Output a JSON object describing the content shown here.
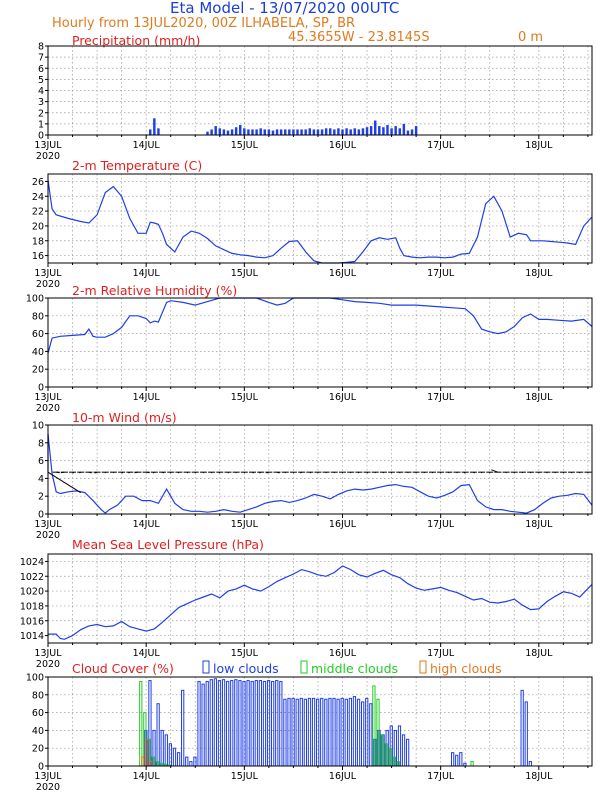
{
  "header": {
    "title": "Eta Model - 13/07/2020 00UTC",
    "subtitle": "Hourly from 13JUL2020, 00Z  ILHABELA, SP, BR",
    "coords": "45.3655W - 23.8145S",
    "elevation": "0   m"
  },
  "x_axis": {
    "ticks": [
      {
        "label": "13JUL",
        "hour": 0
      },
      {
        "label": "14JUL",
        "hour": 24
      },
      {
        "label": "15JUL",
        "hour": 48
      },
      {
        "label": "16JUL",
        "hour": 72
      },
      {
        "label": "17JUL",
        "hour": 96
      },
      {
        "label": "18JUL",
        "hour": 120
      }
    ],
    "year": "2020",
    "range_hours": [
      0,
      133
    ]
  },
  "colors": {
    "series": "#1f3fe8",
    "title_red": "#e02020",
    "header_blue": "#1a3fd8",
    "header_orange": "#e07a1f",
    "low": "#1f3fe8",
    "middle": "#22cc22",
    "high": "#e07a1f",
    "barb": "#000000"
  },
  "legend": {
    "low": "low clouds",
    "middle": "middle clouds",
    "high": "high clouds"
  },
  "chart_data": [
    {
      "id": "precip",
      "type": "bar",
      "title": "Precipitation (mm/h)",
      "ylim": [
        0,
        8
      ],
      "yticks": [
        0,
        1,
        2,
        3,
        4,
        5,
        6,
        7,
        8
      ],
      "x_hours": [
        25,
        26,
        27,
        39,
        40,
        41,
        42,
        43,
        44,
        45,
        46,
        47,
        48,
        49,
        50,
        51,
        52,
        53,
        54,
        55,
        56,
        57,
        58,
        59,
        60,
        61,
        62,
        63,
        64,
        65,
        66,
        67,
        68,
        69,
        70,
        71,
        72,
        73,
        74,
        75,
        76,
        77,
        78,
        79,
        80,
        81,
        82,
        83,
        84,
        85,
        86,
        87,
        88,
        89,
        90
      ],
      "values": [
        0.5,
        1.5,
        0.6,
        0.3,
        0.5,
        0.8,
        0.6,
        0.5,
        0.4,
        0.5,
        0.7,
        0.9,
        0.6,
        0.5,
        0.5,
        0.5,
        0.6,
        0.5,
        0.5,
        0.4,
        0.5,
        0.5,
        0.5,
        0.5,
        0.5,
        0.5,
        0.5,
        0.5,
        0.6,
        0.5,
        0.5,
        0.5,
        0.6,
        0.6,
        0.5,
        0.6,
        0.5,
        0.6,
        0.5,
        0.6,
        0.5,
        0.6,
        0.7,
        0.8,
        1.3,
        0.8,
        0.7,
        0.9,
        0.6,
        0.8,
        0.6,
        1.0,
        0.4,
        0.5,
        0.8
      ]
    },
    {
      "id": "temp",
      "type": "line",
      "title": "2-m Temperature (C)",
      "ylim": [
        15,
        27
      ],
      "yticks": [
        16,
        18,
        20,
        22,
        24,
        26
      ],
      "x": [
        0,
        1,
        2,
        5,
        8,
        10,
        12,
        14,
        16,
        18,
        20,
        22,
        24,
        25,
        26,
        27,
        28,
        29,
        31,
        33,
        35,
        37,
        39,
        41,
        43,
        45,
        47,
        49,
        51,
        53,
        55,
        57,
        59,
        61,
        63,
        65,
        67,
        69,
        71,
        73,
        75,
        77,
        79,
        81,
        83,
        85,
        86,
        87,
        89,
        91,
        93,
        95,
        97,
        99,
        101,
        103,
        105,
        107,
        109,
        111,
        113,
        115,
        117,
        118,
        119,
        121,
        123,
        125,
        127,
        129,
        131,
        133
      ],
      "y": [
        26.2,
        22.3,
        21.5,
        21.0,
        20.6,
        20.4,
        21.5,
        24.5,
        25.3,
        24.0,
        21.0,
        19.0,
        19.0,
        20.5,
        20.4,
        20.2,
        19.0,
        17.5,
        16.5,
        18.5,
        19.3,
        19.0,
        18.3,
        17.3,
        16.8,
        16.3,
        16.1,
        16.0,
        15.8,
        15.7,
        16.0,
        17.0,
        17.9,
        18.0,
        16.5,
        15.3,
        15.0,
        15.0,
        15.0,
        15.1,
        15.2,
        16.5,
        18.0,
        18.4,
        18.2,
        18.4,
        17.0,
        16.0,
        15.8,
        15.7,
        15.8,
        15.8,
        15.7,
        15.8,
        16.2,
        16.3,
        18.5,
        23.0,
        24.0,
        22.0,
        18.5,
        19.0,
        18.8,
        18.0,
        18.0,
        18.0,
        17.9,
        17.8,
        17.7,
        17.5,
        20.0,
        21.2
      ]
    },
    {
      "id": "rh",
      "type": "line",
      "title": "2-m Relative Humidity (%)",
      "ylim": [
        0,
        100
      ],
      "yticks": [
        0,
        20,
        40,
        60,
        80,
        100
      ],
      "x": [
        0,
        1,
        3,
        6,
        9,
        10,
        11,
        12,
        14,
        16,
        18,
        20,
        22,
        24,
        25,
        26,
        27,
        29,
        30,
        33,
        36,
        39,
        42,
        45,
        48,
        51,
        54,
        56,
        58,
        60,
        63,
        66,
        69,
        72,
        75,
        78,
        81,
        84,
        87,
        90,
        93,
        96,
        99,
        102,
        104,
        106,
        108,
        110,
        112,
        114,
        116,
        118,
        120,
        122,
        125,
        128,
        131,
        133
      ],
      "y": [
        38,
        55,
        57,
        58,
        59,
        65,
        57,
        56,
        56,
        60,
        67,
        80,
        80,
        77,
        72,
        74,
        73,
        95,
        97,
        95,
        92,
        96,
        100,
        100,
        100,
        100,
        95,
        92,
        94,
        100,
        100,
        100,
        100,
        98,
        96,
        95,
        94,
        92,
        92,
        92,
        91,
        90,
        89,
        88,
        80,
        65,
        62,
        60,
        62,
        68,
        78,
        82,
        76,
        76,
        75,
        74,
        76,
        68
      ]
    },
    {
      "id": "wind",
      "type": "line",
      "title": "10-m Wind (m/s)",
      "ylim": [
        0,
        10
      ],
      "yticks": [
        0,
        2,
        4,
        6,
        8,
        10
      ],
      "x": [
        0,
        1,
        2,
        3,
        5,
        7,
        9,
        11,
        13,
        14,
        15,
        17,
        19,
        21,
        23,
        25,
        27,
        29,
        30,
        31,
        33,
        35,
        37,
        39,
        41,
        43,
        45,
        47,
        49,
        51,
        53,
        55,
        57,
        59,
        61,
        63,
        65,
        67,
        69,
        71,
        73,
        75,
        77,
        79,
        81,
        83,
        85,
        87,
        89,
        91,
        93,
        95,
        97,
        99,
        101,
        103,
        105,
        107,
        109,
        111,
        113,
        115,
        117,
        119,
        121,
        123,
        125,
        127,
        129,
        131,
        133
      ],
      "y": [
        9.0,
        4.5,
        2.5,
        2.3,
        2.5,
        2.6,
        2.4,
        1.5,
        0.5,
        0.1,
        0.5,
        1.0,
        2.0,
        2.0,
        1.5,
        1.5,
        1.2,
        2.8,
        2.0,
        1.2,
        0.5,
        0.3,
        0.3,
        0.2,
        0.3,
        0.5,
        0.3,
        0.2,
        0.5,
        0.8,
        1.2,
        1.4,
        1.5,
        1.3,
        1.5,
        1.8,
        2.2,
        2.0,
        1.7,
        2.2,
        2.6,
        2.8,
        2.7,
        2.8,
        3.0,
        3.2,
        3.3,
        3.1,
        3.0,
        2.5,
        2.0,
        1.8,
        2.1,
        2.5,
        3.2,
        3.3,
        1.5,
        0.8,
        0.5,
        0.5,
        0.3,
        0.2,
        0.1,
        0.5,
        1.2,
        1.8,
        2.0,
        2.1,
        2.3,
        2.2,
        1.0
      ],
      "barbs": {
        "level": 4.7,
        "every_hours": 2,
        "dir_deg": [
          60,
          120,
          80,
          100,
          70,
          110,
          90,
          90,
          80,
          100,
          120,
          60,
          100,
          80,
          90,
          95,
          85,
          90,
          90,
          90,
          95,
          85,
          90,
          90,
          80,
          100,
          110,
          70,
          90,
          90,
          100,
          80,
          90,
          90,
          90,
          90,
          90,
          95,
          85,
          90,
          90,
          90,
          90,
          90,
          90,
          90,
          90,
          90,
          90,
          90,
          100,
          80,
          90,
          90,
          200,
          90,
          90,
          90,
          90,
          90,
          90,
          90,
          90,
          90,
          90,
          90,
          90
        ]
      }
    },
    {
      "id": "mslp",
      "type": "line",
      "title": "Mean Sea Level Pressure (hPa)",
      "ylim": [
        1013,
        1025
      ],
      "yticks": [
        1014,
        1016,
        1018,
        1020,
        1022,
        1024
      ],
      "x": [
        0,
        2,
        3,
        4,
        6,
        8,
        10,
        12,
        14,
        16,
        18,
        20,
        22,
        24,
        26,
        28,
        30,
        32,
        34,
        36,
        38,
        40,
        42,
        44,
        46,
        48,
        50,
        52,
        54,
        56,
        58,
        60,
        62,
        64,
        66,
        68,
        70,
        72,
        74,
        76,
        78,
        80,
        82,
        84,
        86,
        88,
        90,
        92,
        94,
        96,
        98,
        100,
        102,
        104,
        106,
        108,
        110,
        112,
        114,
        116,
        118,
        120,
        122,
        124,
        126,
        128,
        130,
        133
      ],
      "y": [
        1014.2,
        1014.2,
        1013.6,
        1013.5,
        1014.0,
        1014.8,
        1015.3,
        1015.5,
        1015.2,
        1015.3,
        1015.9,
        1015.2,
        1014.9,
        1014.6,
        1014.9,
        1015.8,
        1016.8,
        1017.8,
        1018.3,
        1018.8,
        1019.2,
        1019.6,
        1019.1,
        1020.0,
        1020.3,
        1020.8,
        1020.3,
        1020.0,
        1020.6,
        1021.3,
        1021.8,
        1022.3,
        1022.9,
        1022.6,
        1022.2,
        1022.0,
        1022.5,
        1023.4,
        1022.9,
        1022.2,
        1021.9,
        1022.4,
        1022.8,
        1022.2,
        1021.8,
        1021.0,
        1020.4,
        1020.1,
        1020.3,
        1020.5,
        1020.1,
        1019.8,
        1019.3,
        1018.8,
        1019.0,
        1018.5,
        1018.4,
        1018.6,
        1018.9,
        1018.1,
        1017.5,
        1017.6,
        1018.6,
        1019.3,
        1019.9,
        1019.7,
        1019.2,
        1020.9
      ]
    },
    {
      "id": "cloud",
      "type": "bar",
      "title": "Cloud Cover (%)",
      "ylim": [
        0,
        100
      ],
      "yticks": [
        0,
        20,
        40,
        60,
        80,
        100
      ],
      "low": {
        "x": [
          24,
          25,
          26,
          27,
          28,
          29,
          30,
          31,
          32,
          33,
          34,
          35,
          36,
          37,
          38,
          39,
          40,
          41,
          42,
          43,
          44,
          45,
          46,
          47,
          48,
          49,
          50,
          51,
          52,
          53,
          54,
          55,
          56,
          57,
          58,
          59,
          60,
          61,
          62,
          63,
          64,
          65,
          66,
          67,
          68,
          69,
          70,
          71,
          72,
          73,
          74,
          75,
          76,
          77,
          78,
          79,
          80,
          81,
          82,
          83,
          84,
          85,
          86,
          87,
          88,
          89,
          90,
          91,
          92,
          93,
          94,
          95,
          96,
          97,
          98,
          99,
          100,
          101,
          102,
          103,
          104,
          105,
          106,
          107,
          108,
          109,
          110,
          111,
          112,
          113,
          114,
          115,
          116,
          117,
          118,
          119,
          120,
          121,
          122
        ],
        "y": [
          40,
          96,
          40,
          70,
          40,
          35,
          25,
          20,
          15,
          85,
          10,
          5,
          10,
          95,
          92,
          95,
          97,
          98,
          96,
          97,
          95,
          96,
          97,
          96,
          95,
          96,
          95,
          96,
          96,
          95,
          96,
          95,
          96,
          95,
          75,
          76,
          76,
          75,
          76,
          75,
          76,
          76,
          75,
          76,
          75,
          76,
          76,
          75,
          76,
          75,
          76,
          78,
          75,
          72,
          76,
          70,
          30,
          40,
          35,
          40,
          45,
          40,
          45,
          35,
          30,
          0,
          0,
          0,
          0,
          0,
          0,
          0,
          0,
          0,
          0,
          15,
          12,
          15,
          3,
          0,
          0,
          0,
          0,
          0,
          0,
          0,
          0,
          0,
          0,
          0,
          0,
          0,
          0,
          0,
          0,
          0,
          0,
          0,
          0
        ]
      },
      "middle": {
        "x": [
          23,
          24,
          25,
          26,
          27,
          28,
          29,
          30,
          80,
          81,
          82,
          83,
          84,
          85,
          86,
          104
        ],
        "y": [
          95,
          60,
          30,
          10,
          5,
          3,
          2,
          1,
          90,
          75,
          35,
          25,
          20,
          10,
          5,
          5
        ]
      },
      "high": {
        "x": [
          23,
          24,
          25
        ],
        "y": [
          10,
          30,
          5
        ]
      },
      "low_late": {
        "x": [
          116,
          117,
          118
        ],
        "y": [
          85,
          72,
          5
        ]
      }
    }
  ]
}
